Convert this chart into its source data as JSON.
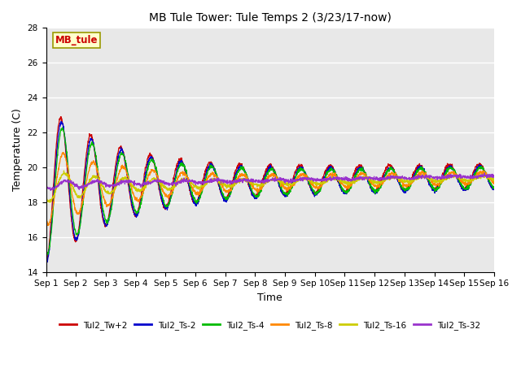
{
  "title": "MB Tule Tower: Tule Temps 2 (3/23/17-now)",
  "xlabel": "Time",
  "ylabel": "Temperature (C)",
  "ylim": [
    14,
    28
  ],
  "yticks": [
    14,
    16,
    18,
    20,
    22,
    24,
    26,
    28
  ],
  "xlim_days": 15,
  "plot_bg_color": "#e8e8e8",
  "series": [
    {
      "label": "Tul2_Tw+2",
      "color": "#cc0000",
      "depth": 0,
      "amp_factor": 1.0,
      "phase": 0.0,
      "base": 19.0
    },
    {
      "label": "Tul2_Ts-2",
      "color": "#0000cc",
      "depth": 2,
      "amp_factor": 0.97,
      "phase": 0.15,
      "base": 18.9
    },
    {
      "label": "Tul2_Ts-4",
      "color": "#00bb00",
      "depth": 4,
      "amp_factor": 0.88,
      "phase": 0.3,
      "base": 18.9
    },
    {
      "label": "Tul2_Ts-8",
      "color": "#ff8800",
      "depth": 8,
      "amp_factor": 0.5,
      "phase": 0.5,
      "base": 18.9
    },
    {
      "label": "Tul2_Ts-16",
      "color": "#cccc00",
      "depth": 16,
      "amp_factor": 0.2,
      "phase": 0.8,
      "base": 18.9
    },
    {
      "label": "Tul2_Ts-32",
      "color": "#9933cc",
      "depth": 32,
      "amp_factor": 0.06,
      "phase": 1.2,
      "base": 19.0
    }
  ],
  "annotation_text": "MB_tule",
  "annotation_color": "#cc0000",
  "annotation_bg": "#ffffcc",
  "annotation_border": "#999900"
}
